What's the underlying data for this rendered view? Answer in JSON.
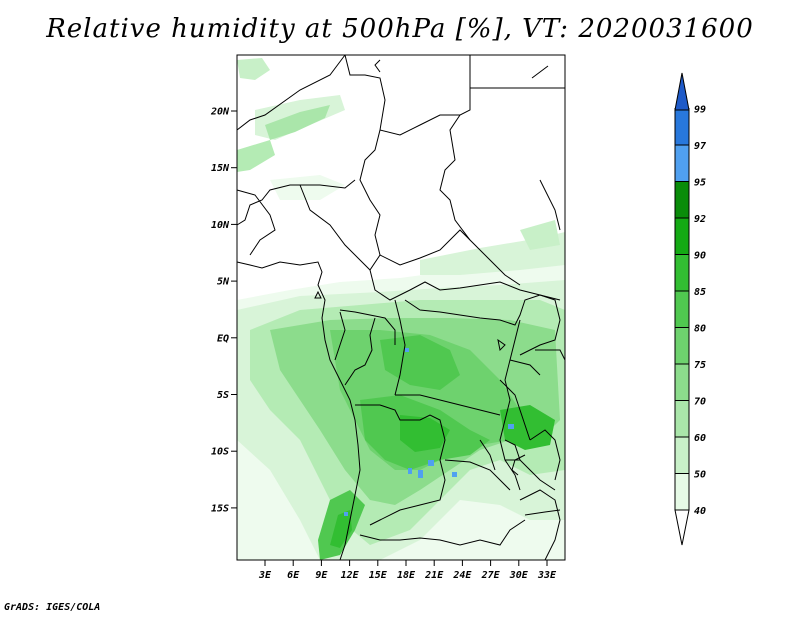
{
  "title": "Relative humidity at 500hPa [%], VT: 2020031600",
  "credit": "GrADS: IGES/COLA",
  "map": {
    "lat_labels": [
      "20N",
      "15N",
      "10N",
      "5N",
      "EQ",
      "5S",
      "10S",
      "15S"
    ],
    "lon_labels": [
      "3E",
      "6E",
      "9E",
      "12E",
      "15E",
      "18E",
      "21E",
      "24E",
      "27E",
      "30E",
      "33E"
    ]
  },
  "colorbar": {
    "labels": [
      "40",
      "50",
      "60",
      "70",
      "75",
      "80",
      "85",
      "90",
      "92",
      "95",
      "97",
      "99"
    ],
    "colors": [
      "#ffffff",
      "#e6fae6",
      "#c8f0c8",
      "#aae6aa",
      "#8cdc8c",
      "#6ed26e",
      "#50c850",
      "#32be32",
      "#14aa14",
      "#0a8c0a",
      "#50a0f0",
      "#2878dc",
      "#1e5ac8"
    ]
  }
}
